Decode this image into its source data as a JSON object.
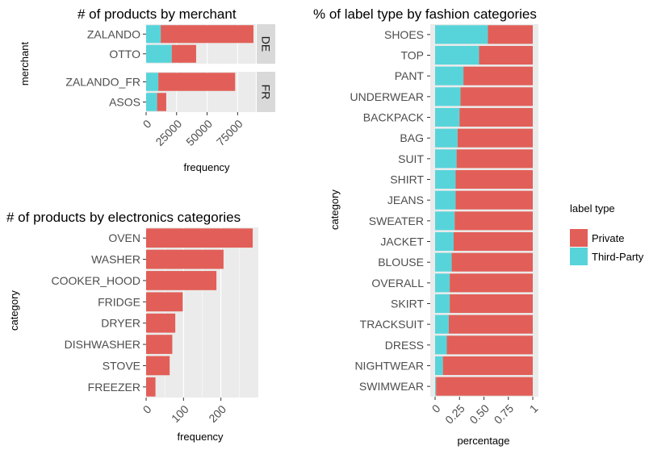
{
  "colors": {
    "private": "#e15f58",
    "third_party": "#57d4da",
    "panel_bg": "#ebebeb",
    "grid": "#ffffff",
    "strip_bg": "#d9d9d9"
  },
  "legend": {
    "title": "label type",
    "items": [
      {
        "key": "private",
        "label": "Private"
      },
      {
        "key": "third_party",
        "label": "Third-Party"
      }
    ]
  },
  "chart_data": [
    {
      "id": "merchant",
      "type": "bar",
      "orientation": "horizontal",
      "stacked": true,
      "title": "# of products by merchant",
      "xlabel": "frequency",
      "ylabel": "merchant",
      "xlim": [
        0,
        90000
      ],
      "xticks": [
        0,
        25000,
        50000,
        75000
      ],
      "facets": [
        {
          "label": "DE",
          "categories": [
            "ZALANDO",
            "OTTO"
          ],
          "private": [
            76000,
            20000
          ],
          "third_party": [
            12000,
            21000
          ]
        },
        {
          "label": "FR",
          "categories": [
            "ZALANDO_FR",
            "ASOS"
          ],
          "private": [
            63000,
            7500
          ],
          "third_party": [
            10000,
            9000
          ]
        }
      ]
    },
    {
      "id": "electronics",
      "type": "bar",
      "orientation": "horizontal",
      "title": "# of products by electronics categories",
      "xlabel": "frequency",
      "ylabel": "category",
      "xlim": [
        0,
        300
      ],
      "xticks": [
        0,
        100,
        200
      ],
      "categories": [
        "OVEN",
        "WASHER",
        "COOKER_HOOD",
        "FRIDGE",
        "DRYER",
        "DISHWASHER",
        "STOVE",
        "FREEZER"
      ],
      "values": [
        285,
        207,
        188,
        98,
        78,
        70,
        63,
        25
      ]
    },
    {
      "id": "fashion",
      "type": "bar",
      "orientation": "horizontal",
      "stacked": true,
      "title": "% of label type by fashion categories",
      "xlabel": "percentage",
      "ylabel": "category",
      "xlim": [
        0,
        1
      ],
      "xticks": [
        0,
        0.25,
        0.5,
        0.75,
        1
      ],
      "xtick_labels": [
        "0",
        "0.25",
        "0.50",
        "0.75",
        "1"
      ],
      "categories": [
        "SHOES",
        "TOP",
        "PANT",
        "UNDERWEAR",
        "BACKPACK",
        "BAG",
        "SUIT",
        "SHIRT",
        "JEANS",
        "SWEATER",
        "JACKET",
        "BLOUSE",
        "OVERALL",
        "SKIRT",
        "TRACKSUIT",
        "DRESS",
        "NIGHTWEAR",
        "SWIMWEAR"
      ],
      "third_party": [
        0.54,
        0.45,
        0.29,
        0.26,
        0.25,
        0.23,
        0.22,
        0.21,
        0.21,
        0.2,
        0.19,
        0.17,
        0.15,
        0.15,
        0.14,
        0.12,
        0.08,
        0.01
      ]
    }
  ]
}
